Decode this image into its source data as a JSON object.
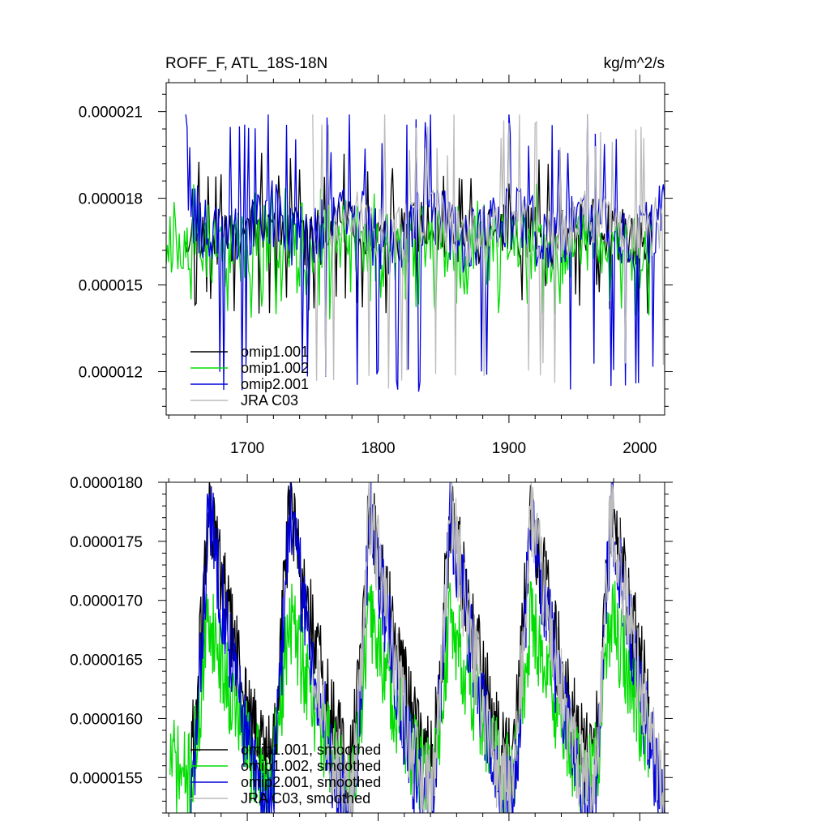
{
  "chart_data": [
    {
      "type": "line",
      "title_left": "ROFF_F, ATL_18S-18N",
      "title_right": "kg/m^2/s",
      "xlim": [
        1638,
        2019
      ],
      "ylim": [
        1.05e-05,
        2.2e-05
      ],
      "x_ticks": [
        1700,
        1800,
        1900,
        2000
      ],
      "y_ticks": [
        {
          "value": 1.2e-05,
          "label": "0.000012"
        },
        {
          "value": 1.5e-05,
          "label": "0.000015"
        },
        {
          "value": 1.8e-05,
          "label": "0.000018"
        },
        {
          "value": 2.1e-05,
          "label": "0.000021"
        }
      ],
      "legend": {
        "position": "bottom-left"
      },
      "grid": false,
      "series": [
        {
          "name": "omip1.001",
          "color": "#000000",
          "start": 1653,
          "end": 2009,
          "cycle_start": 1653,
          "period": 62,
          "peaks": [],
          "seed": 11,
          "base": 1.68e-05,
          "amp": 1e-06,
          "drop_min": 1.4e-05,
          "spike_max": 1.98e-05,
          "cycle_amp": 2e-07
        },
        {
          "name": "omip1.002",
          "color": "#00dd00",
          "start": 1638,
          "end": 2009,
          "cycle_start": 1653,
          "period": 62,
          "peaks": [],
          "seed": 23,
          "base": 1.63e-05,
          "amp": 1.2e-06,
          "drop_min": 1.38e-05,
          "spike_max": 1.85e-05,
          "cycle_amp": 3e-07
        },
        {
          "name": "omip2.001",
          "color": "#0000dd",
          "start": 1653,
          "end": 2019,
          "cycle_start": 1653,
          "period": 62,
          "peaks": [
            1653,
            1716,
            1778,
            1840,
            1900,
            1960
          ],
          "seed": 37,
          "base": 1.7e-05,
          "amp": 1.2e-06,
          "drop_min": 1.13e-05,
          "spike_max": 2.09e-05,
          "cycle_amp": 5e-07
        },
        {
          "name": "JRA C03",
          "color": "#bbbbbb",
          "start": 1750,
          "end": 2019,
          "cycle_start": 1653,
          "period": 62,
          "peaks": [
            1750,
            1805,
            1858,
            1908,
            1960
          ],
          "seed": 53,
          "base": 1.7e-05,
          "amp": 1e-06,
          "drop_min": 1.13e-05,
          "spike_max": 2.09e-05,
          "cycle_amp": 4e-07
        }
      ]
    },
    {
      "type": "line",
      "xlim": [
        1638,
        2019
      ],
      "ylim": [
        1.52e-05,
        1.8e-05
      ],
      "x_ticks": [
        1700,
        1800,
        1900,
        2000
      ],
      "y_ticks": [
        {
          "value": 1.55e-05,
          "label": "0.0000155"
        },
        {
          "value": 1.6e-05,
          "label": "0.0000160"
        },
        {
          "value": 1.65e-05,
          "label": "0.0000165"
        },
        {
          "value": 1.7e-05,
          "label": "0.0000170"
        },
        {
          "value": 1.75e-05,
          "label": "0.0000175"
        },
        {
          "value": 1.8e-05,
          "label": "0.0000180"
        }
      ],
      "legend": {
        "position": "bottom-left"
      },
      "grid": false,
      "series": [
        {
          "name": "omip1.001, smoothed",
          "color": "#000000",
          "start": 1657,
          "end": 2007,
          "cycle_start": 1657,
          "period": 61.5,
          "seed": 61,
          "low": 1.57e-05,
          "high": 1.78e-05,
          "noise": 4e-07
        },
        {
          "name": "omip1.002, smoothed",
          "color": "#00dd00",
          "start": 1641,
          "end": 2007,
          "cycle_start": 1657,
          "period": 61.5,
          "seed": 71,
          "low": 1.55e-05,
          "high": 1.69e-05,
          "noise": 4e-07
        },
        {
          "name": "omip2.001, smoothed",
          "color": "#0000dd",
          "start": 1657,
          "end": 2019,
          "cycle_start": 1657,
          "period": 61.5,
          "seed": 83,
          "low": 1.53e-05,
          "high": 1.78e-05,
          "noise": 4e-07
        },
        {
          "name": "JRA C03, smoothed",
          "color": "#bbbbbb",
          "start": 1750,
          "end": 2019,
          "cycle_start": 1657,
          "period": 61.5,
          "seed": 97,
          "low": 1.54e-05,
          "high": 1.78e-05,
          "noise": 4e-07
        }
      ]
    }
  ]
}
